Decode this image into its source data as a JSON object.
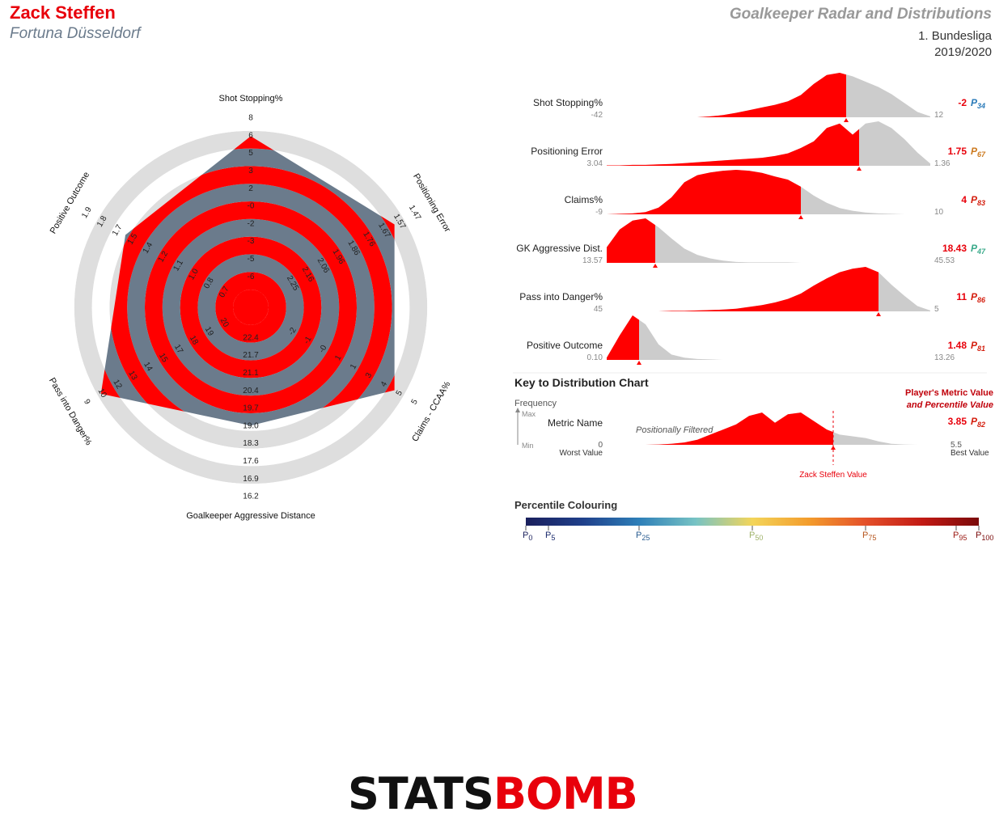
{
  "header": {
    "player": "Zack Steffen",
    "team": "Fortuna Düsseldorf",
    "title": "Goalkeeper Radar and Distributions",
    "league": "1. Bundesliga",
    "season": "2019/2020"
  },
  "chart_data": [
    {
      "type": "radar",
      "axes": [
        {
          "name": "Shot Stopping%",
          "ticks": [
            "8",
            "6",
            "5",
            "3",
            "2",
            "-0",
            "-2",
            "-3",
            "-5",
            "-6"
          ],
          "player_fraction": 0.87
        },
        {
          "name": "Positioning Error",
          "ticks": [
            "1.47",
            "1.57",
            "1.67",
            "1.76",
            "1.86",
            "1.96",
            "2.06",
            "2.16",
            "2.25"
          ],
          "player_fraction": 0.84
        },
        {
          "name": "Claims - CCAA%",
          "ticks": [
            "5",
            "5",
            "4",
            "3",
            "1",
            "1",
            "-0",
            "-1",
            "-2"
          ],
          "player_fraction": 0.84
        },
        {
          "name": "Goalkeeper Aggressive Distance",
          "ticks": [
            "16.2",
            "16.9",
            "17.6",
            "18.3",
            "19.0",
            "19.7",
            "20.4",
            "21.1",
            "21.7",
            "22.4"
          ],
          "player_fraction": 0.57
        },
        {
          "name": "Pass into Danger%",
          "ticks": [
            "9",
            "10",
            "12",
            "13",
            "14",
            "15",
            "17",
            "18",
            "19",
            "20"
          ],
          "player_fraction": 0.88
        },
        {
          "name": "Positive Outcome",
          "ticks": [
            "1.9",
            "1.8",
            "1.7",
            "1.5",
            "1.4",
            "1.2",
            "1.1",
            "1.0",
            "0.8",
            "0.7"
          ],
          "player_fraction": 0.72
        }
      ]
    },
    {
      "type": "distribution",
      "metrics": [
        {
          "name": "Shot Stopping%",
          "worst": "-42",
          "best": "12",
          "value": "-2",
          "percentile": "34",
          "pcolor": "#2b7bb9",
          "player_pos": 0.74,
          "density": [
            0,
            0,
            0,
            0,
            0,
            0,
            0,
            0,
            0.02,
            0.05,
            0.1,
            0.16,
            0.22,
            0.28,
            0.36,
            0.5,
            0.75,
            0.95,
            1.0,
            0.92,
            0.8,
            0.68,
            0.52,
            0.32,
            0.12,
            0.02
          ]
        },
        {
          "name": "Positioning Error",
          "worst": "3.04",
          "best": "1.36",
          "value": "1.75",
          "percentile": "67",
          "pcolor": "#cc7a1f",
          "player_pos": 0.78,
          "density": [
            0.01,
            0.01,
            0.02,
            0.02,
            0.03,
            0.04,
            0.06,
            0.08,
            0.1,
            0.12,
            0.14,
            0.16,
            0.18,
            0.22,
            0.28,
            0.4,
            0.55,
            0.85,
            0.95,
            0.7,
            0.95,
            1.0,
            0.85,
            0.6,
            0.3,
            0.05
          ]
        },
        {
          "name": "Claims%",
          "worst": "-9",
          "best": "10",
          "value": "4",
          "percentile": "83",
          "pcolor": "#d42010",
          "player_pos": 0.6,
          "density": [
            0,
            0.01,
            0.02,
            0.05,
            0.15,
            0.38,
            0.72,
            0.88,
            0.94,
            0.98,
            1.0,
            0.98,
            0.93,
            0.85,
            0.78,
            0.62,
            0.42,
            0.26,
            0.14,
            0.08,
            0.04,
            0.02,
            0.01,
            0,
            0,
            0
          ]
        },
        {
          "name": "GK Aggressive Dist.",
          "worst": "13.57",
          "best": "45.53",
          "value": "18.43",
          "percentile": "47",
          "pcolor": "#3aaa8a",
          "player_pos": 0.15,
          "density": [
            0.35,
            0.75,
            0.95,
            1.0,
            0.8,
            0.55,
            0.32,
            0.18,
            0.1,
            0.05,
            0.02,
            0.01,
            0.01,
            0.01,
            0.01,
            0,
            0,
            0,
            0,
            0,
            0,
            0,
            0,
            0,
            0,
            0
          ]
        },
        {
          "name": "Pass into Danger%",
          "worst": "45",
          "best": "5",
          "value": "11",
          "percentile": "86",
          "pcolor": "#d42010",
          "player_pos": 0.84,
          "density": [
            0,
            0,
            0,
            0,
            0,
            0.01,
            0.01,
            0.02,
            0.03,
            0.04,
            0.06,
            0.1,
            0.14,
            0.2,
            0.28,
            0.4,
            0.58,
            0.74,
            0.88,
            0.96,
            1.0,
            0.88,
            0.6,
            0.35,
            0.12,
            0.02
          ]
        },
        {
          "name": "Positive Outcome",
          "worst": "0.10",
          "best": "13.26",
          "value": "1.48",
          "percentile": "81",
          "pcolor": "#d42010",
          "player_pos": 0.1,
          "density": [
            0.05,
            0.55,
            1.0,
            0.8,
            0.35,
            0.12,
            0.05,
            0.02,
            0.01,
            0,
            0,
            0,
            0,
            0,
            0,
            0,
            0,
            0,
            0,
            0,
            0,
            0,
            0,
            0,
            0,
            0
          ]
        }
      ]
    }
  ],
  "key": {
    "title": "Key to Distribution Chart",
    "frequency": "Frequency",
    "max": "Max",
    "min": "Min",
    "metric_name": "Metric Name",
    "filtered": "Positionally Filtered",
    "worst_num": "0",
    "worst_label": "Worst Value",
    "best_num": "5.5",
    "best_label": "Best Value",
    "player_metric_1": "Player's Metric Value",
    "player_metric_2": "and Percentile Value",
    "example_value": "3.85",
    "example_pct": "82",
    "player_value_label": "Zack Steffen Value",
    "example_pos": 0.7,
    "example_density": [
      0,
      0,
      0,
      0,
      0.01,
      0.03,
      0.07,
      0.15,
      0.3,
      0.45,
      0.6,
      0.85,
      0.95,
      0.65,
      0.9,
      0.95,
      0.7,
      0.45,
      0.3,
      0.25,
      0.2,
      0.1,
      0.03,
      0.01,
      0,
      0
    ]
  },
  "legend": {
    "title": "Percentile Colouring",
    "stops": [
      "#1a1f5c",
      "#1f3f8a",
      "#2e7fb8",
      "#77c3c4",
      "#f3d55a",
      "#f39c2c",
      "#e4502a",
      "#c21a14",
      "#7a0a0a"
    ],
    "markers": [
      {
        "label": "0",
        "frac": 0.0,
        "color": "#1a1f5c"
      },
      {
        "label": "5",
        "frac": 0.05,
        "color": "#1a2a6c"
      },
      {
        "label": "25",
        "frac": 0.25,
        "color": "#2a5d91"
      },
      {
        "label": "50",
        "frac": 0.5,
        "color": "#9fb36a"
      },
      {
        "label": "75",
        "frac": 0.75,
        "color": "#b5541c"
      },
      {
        "label": "95",
        "frac": 0.95,
        "color": "#9b1a14"
      },
      {
        "label": "100",
        "frac": 1.0,
        "color": "#7a0a0a"
      }
    ]
  },
  "logo": {
    "part1": "STATS",
    "part2": "BOMB"
  }
}
